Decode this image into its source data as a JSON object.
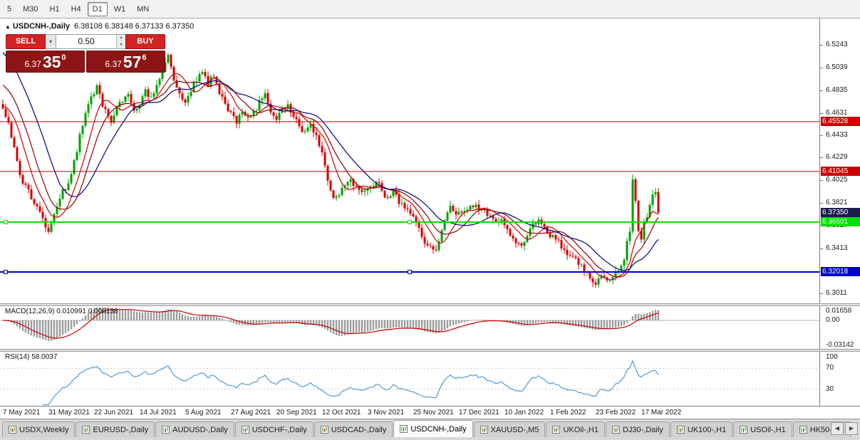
{
  "toolbar": {
    "timeframes": [
      {
        "label": "5",
        "active": false
      },
      {
        "label": "M30",
        "active": false
      },
      {
        "label": "H1",
        "active": false
      },
      {
        "label": "H4",
        "active": false
      },
      {
        "label": "D1",
        "active": true
      },
      {
        "label": "W1",
        "active": false
      },
      {
        "label": "MN",
        "active": false
      }
    ]
  },
  "chart_header": {
    "expand_icon": "▲",
    "title": "USDCNH-,Daily",
    "ohlc_text": "6.38108 6.38148 6.37133 6.37350"
  },
  "trade_panel": {
    "sell_label": "SELL",
    "buy_label": "BUY",
    "volume": "0.50",
    "sell_price": {
      "prefix": "6.37",
      "big": "35",
      "sup": "0"
    },
    "buy_price": {
      "prefix": "6.37",
      "big": "57",
      "sup": "6"
    }
  },
  "chart_data": {
    "type": "candlestick",
    "symbol": "USDCNH-",
    "timeframe": "Daily",
    "open": "6.38108",
    "high": "6.38148",
    "low": "6.37133",
    "close": "6.37350",
    "x_labels": [
      "7 May 2021",
      "31 May 2021",
      "22 Jun 2021",
      "14 Jul 2021",
      "5 Aug 2021",
      "27 Aug 2021",
      "20 Sep 2021",
      "12 Oct 2021",
      "3 Nov 2021",
      "25 Nov 2021",
      "17 Dec 2021",
      "10 Jan 2022",
      "1 Feb 2022",
      "23 Feb 2022",
      "17 Mar 2022"
    ],
    "bars_per_label": 16,
    "total_bars": 231,
    "y_axis_ticks": [
      "6.5243",
      "6.5039",
      "6.4835",
      "6.4631",
      "6.4433",
      "6.4229",
      "6.4025",
      "6.3821",
      "6.3617",
      "6.3413",
      "6.3209",
      "6.3011"
    ],
    "price_range": {
      "top": 6.548,
      "bottom": 6.292
    },
    "close_path_anchors": [
      [
        0,
        6.467
      ],
      [
        2,
        6.452
      ],
      [
        4,
        6.434
      ],
      [
        6,
        6.407
      ],
      [
        9,
        6.393
      ],
      [
        12,
        6.379
      ],
      [
        14,
        6.368
      ],
      [
        16,
        6.358
      ],
      [
        18,
        6.371
      ],
      [
        21,
        6.392
      ],
      [
        24,
        6.406
      ],
      [
        27,
        6.443
      ],
      [
        30,
        6.469
      ],
      [
        33,
        6.489
      ],
      [
        35,
        6.471
      ],
      [
        38,
        6.457
      ],
      [
        41,
        6.471
      ],
      [
        44,
        6.483
      ],
      [
        46,
        6.463
      ],
      [
        48,
        6.471
      ],
      [
        50,
        6.483
      ],
      [
        52,
        6.477
      ],
      [
        54,
        6.489
      ],
      [
        56,
        6.501
      ],
      [
        58,
        6.518
      ],
      [
        60,
        6.493
      ],
      [
        62,
        6.479
      ],
      [
        64,
        6.471
      ],
      [
        66,
        6.483
      ],
      [
        68,
        6.493
      ],
      [
        70,
        6.5
      ],
      [
        72,
        6.489
      ],
      [
        74,
        6.498
      ],
      [
        76,
        6.483
      ],
      [
        78,
        6.471
      ],
      [
        80,
        6.462
      ],
      [
        82,
        6.456
      ],
      [
        84,
        6.466
      ],
      [
        86,
        6.458
      ],
      [
        88,
        6.464
      ],
      [
        90,
        6.472
      ],
      [
        92,
        6.478
      ],
      [
        94,
        6.462
      ],
      [
        96,
        6.456
      ],
      [
        98,
        6.466
      ],
      [
        100,
        6.471
      ],
      [
        102,
        6.461
      ],
      [
        104,
        6.451
      ],
      [
        106,
        6.447
      ],
      [
        108,
        6.452
      ],
      [
        110,
        6.441
      ],
      [
        112,
        6.429
      ],
      [
        114,
        6.403
      ],
      [
        116,
        6.386
      ],
      [
        119,
        6.393
      ],
      [
        122,
        6.401
      ],
      [
        125,
        6.394
      ],
      [
        128,
        6.397
      ],
      [
        131,
        6.402
      ],
      [
        134,
        6.388
      ],
      [
        137,
        6.391
      ],
      [
        140,
        6.381
      ],
      [
        143,
        6.372
      ],
      [
        146,
        6.36
      ],
      [
        149,
        6.343
      ],
      [
        152,
        6.338
      ],
      [
        154,
        6.36
      ],
      [
        157,
        6.378
      ],
      [
        160,
        6.372
      ],
      [
        163,
        6.377
      ],
      [
        166,
        6.381
      ],
      [
        169,
        6.373
      ],
      [
        172,
        6.365
      ],
      [
        175,
        6.368
      ],
      [
        177,
        6.357
      ],
      [
        180,
        6.346
      ],
      [
        182,
        6.342
      ],
      [
        185,
        6.361
      ],
      [
        188,
        6.367
      ],
      [
        191,
        6.357
      ],
      [
        194,
        6.349
      ],
      [
        197,
        6.341
      ],
      [
        200,
        6.333
      ],
      [
        203,
        6.326
      ],
      [
        206,
        6.315
      ],
      [
        208,
        6.31
      ],
      [
        210,
        6.318
      ],
      [
        212,
        6.311
      ],
      [
        214,
        6.316
      ],
      [
        216,
        6.322
      ],
      [
        218,
        6.332
      ],
      [
        220,
        6.358
      ],
      [
        221,
        6.402
      ],
      [
        222,
        6.383
      ],
      [
        223,
        6.36
      ],
      [
        224,
        6.352
      ],
      [
        226,
        6.372
      ],
      [
        228,
        6.388
      ],
      [
        229,
        6.392
      ],
      [
        230,
        6.3735
      ]
    ],
    "hlines": [
      {
        "value": 6.45528,
        "label": "6.45528",
        "color": "#cc0000",
        "width": 1,
        "handles": false
      },
      {
        "value": 6.41045,
        "label": "6.41045",
        "color": "#cc0000",
        "width": 1,
        "handles": false
      },
      {
        "value": 6.36501,
        "label": "6.36501",
        "color": "#00dd00",
        "width": 2,
        "handles": true
      },
      {
        "value": 6.32018,
        "label": "6.32018",
        "color": "#0000cc",
        "width": 2,
        "handles": true
      }
    ],
    "current_price": {
      "value": 6.3735,
      "label": "6.37350",
      "bg": "#1b1b4f"
    },
    "up_color": "#00a000",
    "down_color": "#d40000",
    "ma_lines": [
      {
        "period": 8,
        "seed": 6.47,
        "color": "#cc0000"
      },
      {
        "period": 13,
        "seed": 6.49,
        "color": "#8b0000"
      },
      {
        "period": 21,
        "seed": 6.52,
        "color": "#000080"
      }
    ],
    "macd": {
      "title": "MACD(12,26,9) 0.010991 0.008138",
      "fast": 12,
      "slow": 26,
      "signal": 9,
      "ticks": [
        {
          "label": "0.01658",
          "value": 0.01658
        },
        {
          "label": "0.00",
          "value": 0
        },
        {
          "label": "-0.03142",
          "value": -0.03142
        }
      ],
      "histogram_color": "#9c9c9c",
      "signal_color": "#cc0000"
    },
    "rsi": {
      "title": "RSI(14) 58.0037",
      "period": 14,
      "value": 58.0037,
      "levels": [
        70,
        30
      ],
      "ticks": [
        {
          "label": "100",
          "value": 100
        },
        {
          "label": "70",
          "value": 70
        },
        {
          "label": "30",
          "value": 30
        }
      ],
      "color": "#4f9bd5"
    }
  },
  "bottom_tabs": {
    "tabs": [
      {
        "label": "USDX,Weekly",
        "active": false
      },
      {
        "label": "EURUSD-,Daily",
        "active": false
      },
      {
        "label": "AUDUSD-,Daily",
        "active": false
      },
      {
        "label": "USDCHF-,Daily",
        "active": false
      },
      {
        "label": "USDCAD-,Daily",
        "active": false
      },
      {
        "label": "USDCNH-,Daily",
        "active": true
      },
      {
        "label": "XAUUSD-,M5",
        "active": false
      },
      {
        "label": "UKOil-,H1",
        "active": false
      },
      {
        "label": "DJ30-,Daily",
        "active": false
      },
      {
        "label": "UK100-,H1",
        "active": false
      },
      {
        "label": "USOil-,H1",
        "active": false
      },
      {
        "label": "HK50-,H1",
        "active": false
      }
    ],
    "scroll_left": "◀",
    "scroll_right": "▶"
  }
}
